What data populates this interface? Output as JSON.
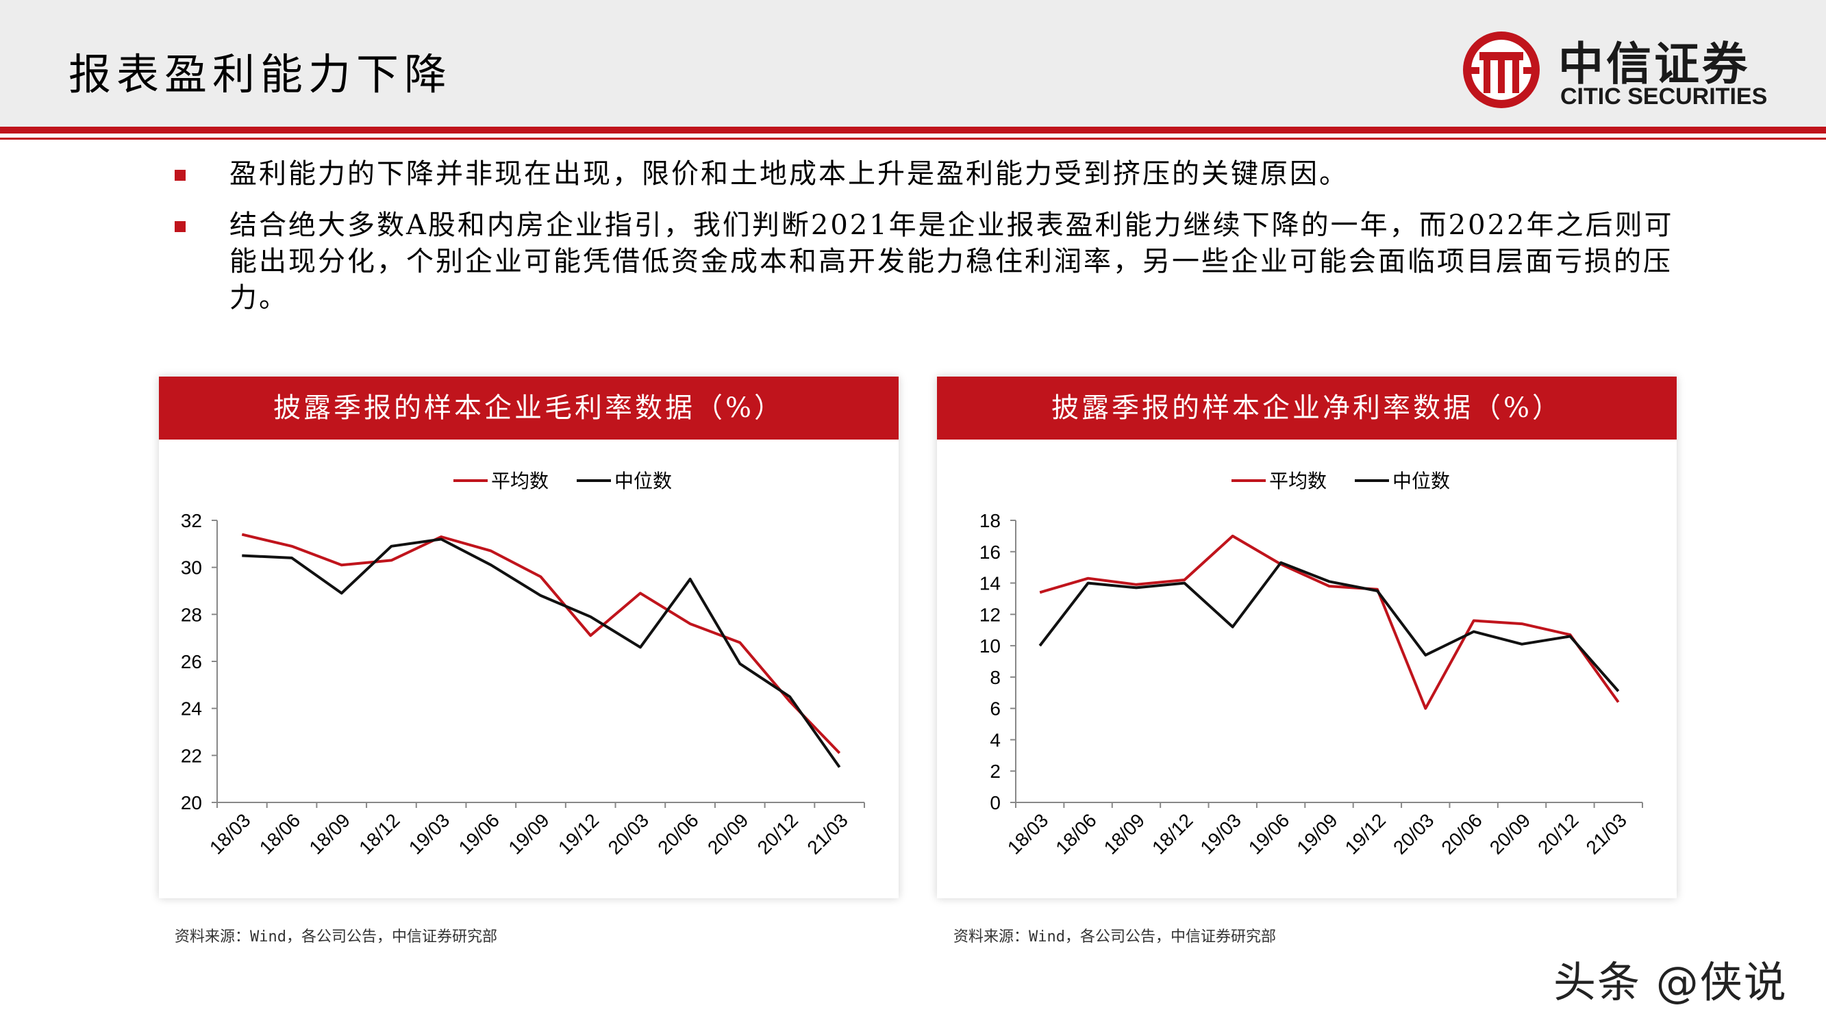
{
  "page": {
    "title": "报表盈利能力下降",
    "logo_cn": "中信证券",
    "logo_en": "CITIC SECURITIES",
    "watermark": "头条 @侠说"
  },
  "bullets": [
    "盈利能力的下降并非现在出现，限价和土地成本上升是盈利能力受到挤压的关键原因。",
    "结合绝大多数A股和内房企业指引，我们判断2021年是企业报表盈利能力继续下降的一年，而2022年之后则可能出现分化，个别企业可能凭借低资金成本和高开发能力稳住利润率，另一些企业可能会面临项目层面亏损的压力。"
  ],
  "colors": {
    "brand_red": "#c0141c",
    "series_avg": "#c0141c",
    "series_median": "#111111"
  },
  "chart_data": [
    {
      "type": "line",
      "title": "披露季报的样本企业毛利率数据（%）",
      "source": "资料来源：Wind，各公司公告，中信证券研究部",
      "categories": [
        "18/03",
        "18/06",
        "18/09",
        "18/12",
        "19/03",
        "19/06",
        "19/09",
        "19/12",
        "20/03",
        "20/06",
        "20/09",
        "20/12",
        "21/03"
      ],
      "series": [
        {
          "name": "平均数",
          "color": "#c0141c",
          "values": [
            31.4,
            30.9,
            30.1,
            30.3,
            31.3,
            30.7,
            29.6,
            27.1,
            28.9,
            27.6,
            26.8,
            24.3,
            22.1
          ]
        },
        {
          "name": "中位数",
          "color": "#111111",
          "values": [
            30.5,
            30.4,
            28.9,
            30.9,
            31.2,
            30.1,
            28.8,
            27.9,
            26.6,
            29.5,
            25.9,
            24.5,
            21.5
          ]
        }
      ],
      "ylim": [
        20,
        32
      ],
      "yticks": [
        20,
        22,
        24,
        26,
        28,
        30,
        32
      ],
      "legend": "top",
      "grid": false
    },
    {
      "type": "line",
      "title": "披露季报的样本企业净利率数据（%）",
      "source": "资料来源：Wind，各公司公告，中信证券研究部",
      "categories": [
        "18/03",
        "18/06",
        "18/09",
        "18/12",
        "19/03",
        "19/06",
        "19/09",
        "19/12",
        "20/03",
        "20/06",
        "20/09",
        "20/12",
        "21/03"
      ],
      "series": [
        {
          "name": "平均数",
          "color": "#c0141c",
          "values": [
            13.4,
            14.3,
            13.9,
            14.2,
            17.0,
            15.2,
            13.8,
            13.6,
            6.0,
            11.6,
            11.4,
            10.7,
            6.4
          ]
        },
        {
          "name": "中位数",
          "color": "#111111",
          "values": [
            10.0,
            14.0,
            13.7,
            14.0,
            11.2,
            15.3,
            14.1,
            13.5,
            9.4,
            10.9,
            10.1,
            10.6,
            7.1
          ]
        }
      ],
      "ylim": [
        0,
        18
      ],
      "yticks": [
        0,
        2,
        4,
        6,
        8,
        10,
        12,
        14,
        16,
        18
      ],
      "legend": "top",
      "grid": false
    }
  ]
}
